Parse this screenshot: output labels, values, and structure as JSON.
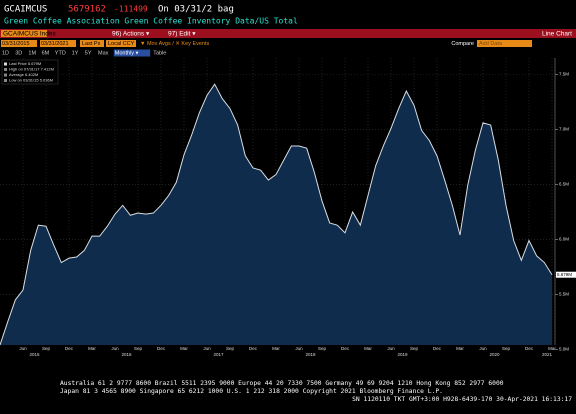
{
  "header": {
    "ticker": "GCAIMCUS",
    "last": "5679162",
    "change": "-111499",
    "asof": "On 03/31/2 bag",
    "description": "Green Coffee Association Green Coffee Inventory Data/US Total"
  },
  "menubar": {
    "security": "GCAIMCUS Index",
    "actions": "96) Actions ▾",
    "edit": "97) Edit ▾",
    "view": "Line Chart"
  },
  "toolbar": {
    "start": "03/31/2015",
    "end": "03/31/2021",
    "field": "Last Px",
    "currency": "Local CCY",
    "events": "▼ Mov Avgs / ✕ Key Events",
    "compare": "Compare",
    "add": "Add Data"
  },
  "ranges": [
    "1D",
    "3D",
    "1M",
    "6M",
    "YTD",
    "1Y",
    "5Y",
    "Max",
    "Monthly ▾",
    "Table"
  ],
  "legend": [
    "Last Price 5.679M",
    "High on 07/31/17 7.412M",
    "Average 6.402M",
    "Low on 03/31/15 5.036M"
  ],
  "footer": [
    "Australia 61 2 9777 8600 Brazil 5511 2395 9000 Europe 44 20 7330 7500 Germany 49 69 9204 1210 Hong Kong 852 2977 6000",
    "Japan 81 3 4565 8900      Singapore 65 6212 1000      U.S. 1 212 318 2000      Copyright 2021 Bloomberg Finance L.P.",
    "SN 1120110 TKT  GMT+3:00 H928-6439-170 30-Apr-2021 16:13:17"
  ],
  "chart_data": {
    "type": "area",
    "color": "#d9dde2",
    "fill": "#0f2c4c",
    "categories": [
      null,
      null,
      null,
      "Jun",
      null,
      null,
      "Sep",
      null,
      null,
      "Dec",
      null,
      null,
      "Mar",
      null,
      null,
      "Jun",
      null,
      null,
      "Sep",
      null,
      null,
      "Dec",
      null,
      null,
      "Mar",
      null,
      null,
      "Jun",
      null,
      null,
      "Sep",
      null,
      null,
      "Dec",
      null,
      null,
      "Mar",
      null,
      null,
      "Jun",
      null,
      null,
      "Sep",
      null,
      null,
      "Dec",
      null,
      null,
      "Mar",
      null,
      null,
      "Jun",
      null,
      null,
      "Sep",
      null,
      null,
      "Dec",
      null,
      null,
      "Mar",
      null,
      null,
      "Jun",
      null,
      null,
      "Sep",
      null,
      null,
      "Dec",
      null,
      null,
      "Mar"
    ],
    "years": [
      "2015",
      "2016",
      "2017",
      "2018",
      "2019",
      "2020",
      "2021"
    ],
    "values": [
      5.04,
      5.25,
      5.45,
      5.54,
      5.9,
      6.13,
      6.12,
      5.95,
      5.79,
      5.83,
      5.84,
      5.9,
      6.03,
      6.03,
      6.12,
      6.23,
      6.31,
      6.22,
      6.24,
      6.23,
      6.24,
      6.31,
      6.4,
      6.52,
      6.77,
      6.95,
      7.15,
      7.31,
      7.412,
      7.28,
      7.19,
      7.04,
      6.76,
      6.65,
      6.63,
      6.54,
      6.59,
      6.72,
      6.85,
      6.85,
      6.83,
      6.61,
      6.35,
      6.15,
      6.13,
      6.06,
      6.25,
      6.13,
      6.4,
      6.67,
      6.85,
      7.01,
      7.19,
      7.35,
      7.22,
      6.99,
      6.9,
      6.76,
      6.54,
      6.31,
      6.04,
      6.49,
      6.81,
      7.06,
      7.04,
      6.72,
      6.31,
      5.99,
      5.81,
      5.99,
      5.85,
      5.79,
      5.679162
    ],
    "last_label": "5.679M",
    "ylim": [
      5.04,
      7.65
    ],
    "yticks": [
      {
        "value": 5.0,
        "label": "5.0M"
      },
      {
        "value": 5.5,
        "label": "5.5M"
      },
      {
        "value": 6.0,
        "label": "6.0M"
      },
      {
        "value": 6.5,
        "label": "6.5M"
      },
      {
        "value": 7.0,
        "label": "7.0M"
      },
      {
        "value": 7.5,
        "label": "7.5M"
      }
    ],
    "grid": true
  }
}
